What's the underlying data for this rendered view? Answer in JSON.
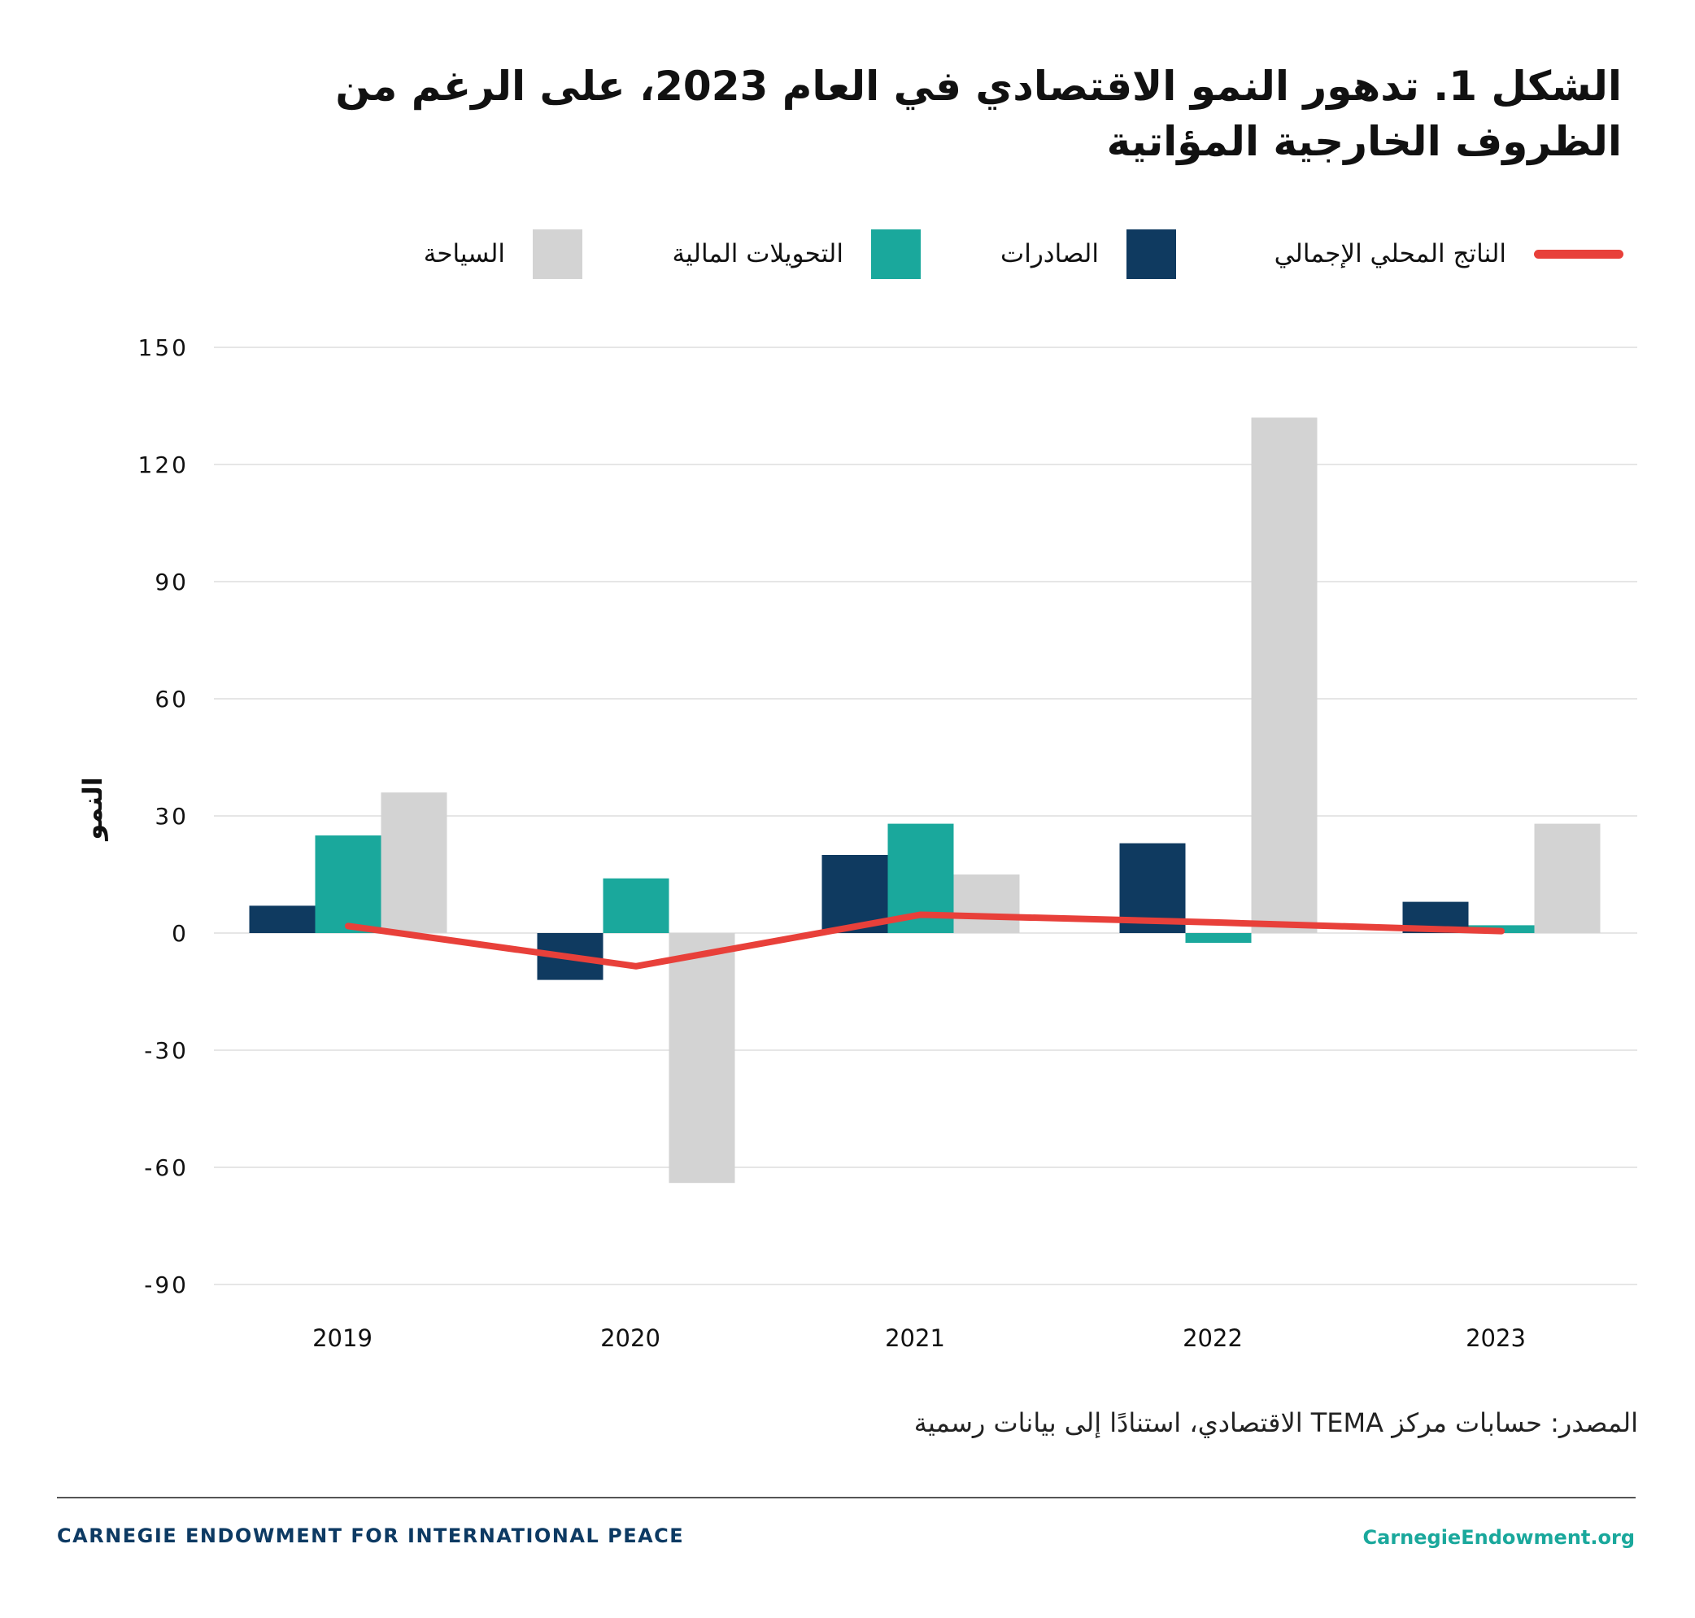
{
  "title": "الشكل 1. تدهور النمو الاقتصادي في العام 2023، على الرغم من الظروف الخارجية المؤاتية",
  "source": "المصدر: حسابات مركز TEMA الاقتصادي، استنادًا إلى بيانات رسمية",
  "footer": {
    "brand": "CARNEGIE ENDOWMENT FOR INTERNATIONAL PEACE",
    "site": "CarnegieEndowment.org"
  },
  "chart_data": {
    "type": "bar",
    "title": "الشكل 1. تدهور النمو الاقتصادي في العام 2023، على الرغم من الظروف الخارجية المؤاتية",
    "xlabel": "",
    "ylabel": "النمو",
    "categories": [
      "2019",
      "2020",
      "2021",
      "2022",
      "2023"
    ],
    "ylim": [
      -90,
      150
    ],
    "yticks": [
      150,
      120,
      90,
      60,
      30,
      0,
      -30,
      -60,
      -90
    ],
    "grid": true,
    "legend_position": "top",
    "series": [
      {
        "name": "الصادرات",
        "kind": "bar",
        "color": "#0f3a60",
        "values": [
          7,
          -12,
          20,
          23,
          8
        ]
      },
      {
        "name": "التحويلات المالية",
        "kind": "bar",
        "color": "#1aa89c",
        "values": [
          25,
          14,
          28,
          -2.5,
          2
        ]
      },
      {
        "name": "السياحة",
        "kind": "bar",
        "color": "#d3d3d3",
        "values": [
          36,
          -64,
          15,
          132,
          28
        ]
      },
      {
        "name": "الناتج المحلي الإجمالي",
        "kind": "line",
        "color": "#e8403a",
        "values": [
          1.8,
          -8.5,
          4.7,
          2.7,
          0.5
        ]
      }
    ]
  }
}
